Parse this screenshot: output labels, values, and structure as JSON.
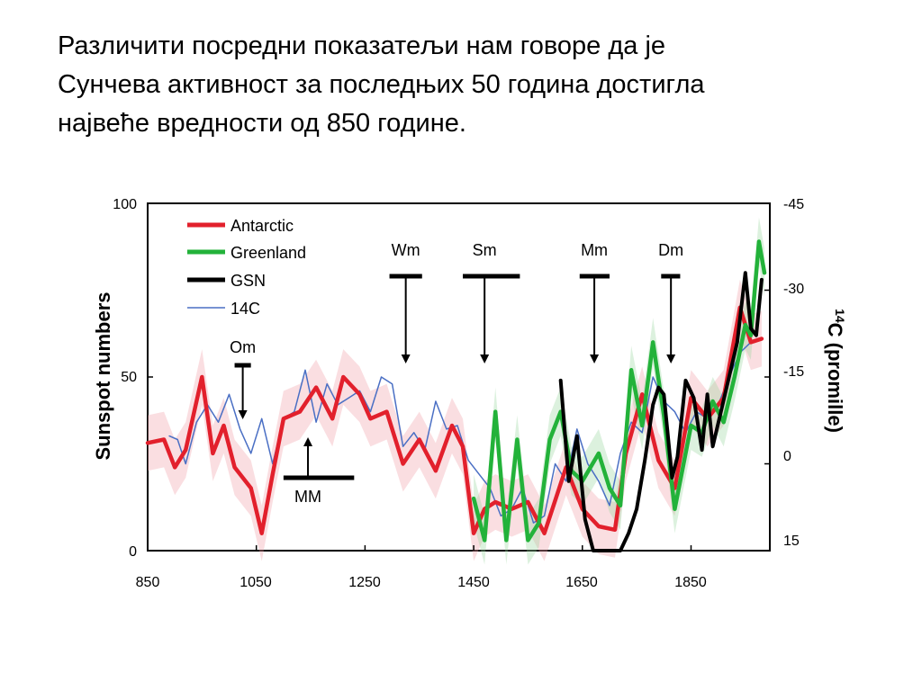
{
  "slide": {
    "lines": [
      "Различити посредни показатељи нам говоре да је",
      "Сунчева активност за последњих 50 година достигла",
      "највеће вредности од 850 године."
    ]
  },
  "chart_data": {
    "type": "line",
    "ylabel": "Sunspot numbers",
    "y2label_sup": "14",
    "y2label": "C (promille)",
    "xlim": [
      850,
      1995
    ],
    "ylim": [
      0,
      100
    ],
    "y2lim": [
      15,
      -45
    ],
    "xticks": [
      "850",
      "1050",
      "1250",
      "1450",
      "1650",
      "1850"
    ],
    "yticks": [
      "100",
      "50",
      "0"
    ],
    "y2ticks": [
      "-45",
      "-30",
      "-15",
      "0",
      "15"
    ],
    "legend_position": "top-left",
    "series": [
      {
        "name": "Antarctic",
        "color": "#e2202c",
        "x": [
          850,
          880,
          900,
          920,
          950,
          970,
          990,
          1010,
          1040,
          1060,
          1080,
          1100,
          1130,
          1160,
          1190,
          1210,
          1240,
          1260,
          1290,
          1320,
          1350,
          1380,
          1410,
          1430,
          1450,
          1470,
          1490,
          1520,
          1550,
          1580,
          1620,
          1650,
          1680,
          1710,
          1730,
          1760,
          1790,
          1820,
          1850,
          1880,
          1910,
          1940,
          1960,
          1980
        ],
        "y": [
          31,
          32,
          24,
          29,
          50,
          28,
          36,
          24,
          18,
          5,
          22,
          38,
          40,
          47,
          38,
          50,
          45,
          38,
          40,
          25,
          32,
          23,
          36,
          30,
          5,
          12,
          14,
          12,
          14,
          5,
          24,
          12,
          7,
          6,
          28,
          45,
          26,
          18,
          44,
          38,
          44,
          70,
          60,
          61
        ]
      },
      {
        "name": "Greenland",
        "color": "#23b23a",
        "x": [
          1450,
          1470,
          1490,
          1510,
          1530,
          1550,
          1570,
          1590,
          1610,
          1630,
          1650,
          1680,
          1700,
          1720,
          1740,
          1760,
          1780,
          1800,
          1820,
          1850,
          1870,
          1890,
          1910,
          1930,
          1950,
          1960,
          1975,
          1985
        ],
        "y": [
          15,
          3,
          40,
          3,
          32,
          3,
          8,
          32,
          40,
          23,
          20,
          28,
          18,
          13,
          52,
          36,
          60,
          39,
          12,
          36,
          34,
          43,
          37,
          50,
          65,
          62,
          89,
          80
        ]
      },
      {
        "name": "GSN",
        "color": "#000000",
        "x": [
          1610,
          1625,
          1640,
          1655,
          1670,
          1690,
          1710,
          1720,
          1735,
          1750,
          1765,
          1780,
          1790,
          1800,
          1815,
          1825,
          1840,
          1855,
          1870,
          1880,
          1890,
          1905,
          1920,
          1935,
          1950,
          1960,
          1970,
          1980
        ],
        "y": [
          49,
          20,
          33,
          9,
          0,
          0,
          0,
          0,
          5,
          12,
          26,
          42,
          47,
          45,
          21,
          27,
          49,
          44,
          29,
          45,
          30,
          40,
          50,
          60,
          80,
          64,
          62,
          78
        ]
      },
      {
        "name": "14C",
        "color": "#4a6fc4",
        "x": [
          890,
          905,
          920,
          940,
          960,
          980,
          1000,
          1020,
          1040,
          1060,
          1080,
          1100,
          1120,
          1140,
          1160,
          1180,
          1200,
          1220,
          1240,
          1260,
          1280,
          1300,
          1320,
          1340,
          1360,
          1380,
          1400,
          1420,
          1440,
          1460,
          1480,
          1500,
          1520,
          1540,
          1560,
          1580,
          1600,
          1620,
          1640,
          1660,
          1680,
          1700,
          1720,
          1740,
          1760,
          1780,
          1800,
          1820,
          1840,
          1860,
          1880,
          1900,
          1920,
          1940,
          1960,
          1980
        ],
        "y": [
          33,
          32,
          25,
          37,
          42,
          37,
          45,
          35,
          28,
          38,
          25,
          38,
          40,
          52,
          37,
          48,
          42,
          44,
          46,
          40,
          50,
          48,
          30,
          34,
          29,
          43,
          35,
          36,
          26,
          22,
          18,
          10,
          12,
          18,
          8,
          10,
          25,
          20,
          35,
          25,
          20,
          13,
          28,
          37,
          34,
          50,
          43,
          40,
          34,
          40,
          38,
          42,
          50,
          57,
          60,
          61
        ]
      }
    ],
    "annotations": [
      {
        "label": "Om",
        "x": 1025,
        "direction": "down"
      },
      {
        "label": "MM",
        "x": 1145,
        "direction": "up"
      },
      {
        "label": "Wm",
        "x": 1325,
        "direction": "down"
      },
      {
        "label": "Sm",
        "x": 1470,
        "direction": "down"
      },
      {
        "label": "Mm",
        "x": 1672,
        "direction": "down"
      },
      {
        "label": "Dm",
        "x": 1813,
        "direction": "down"
      }
    ]
  }
}
